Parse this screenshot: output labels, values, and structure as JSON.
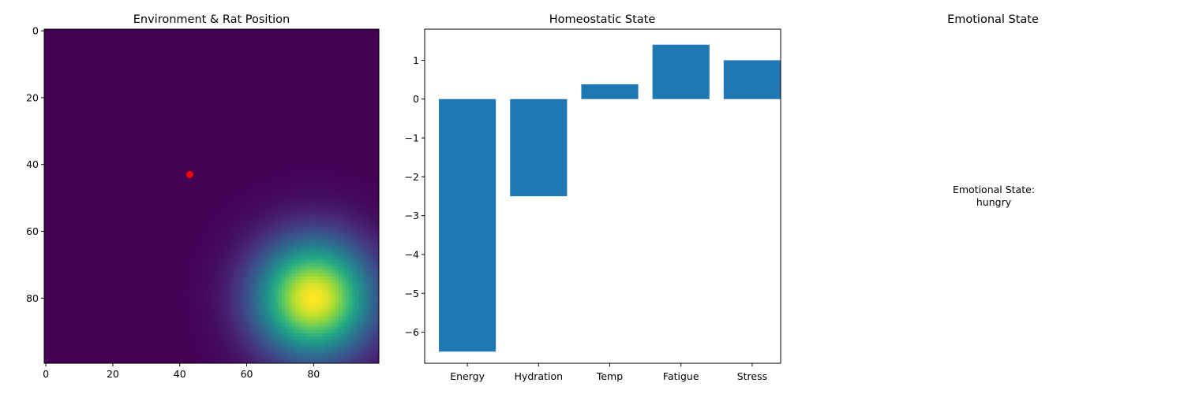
{
  "chart_data": [
    {
      "type": "heatmap",
      "title": "Environment & Rat Position",
      "grid_size": [
        100,
        100
      ],
      "colormap": "viridis",
      "xlim": [
        0,
        99
      ],
      "ylim": [
        99,
        0
      ],
      "xticks": [
        0,
        20,
        40,
        60,
        80
      ],
      "yticks": [
        0,
        20,
        40,
        60,
        80
      ],
      "field": {
        "type": "gaussian-peak",
        "center": [
          80,
          80
        ],
        "peak": 1.0,
        "sigma": 12
      },
      "marker": {
        "x": 43,
        "y": 43,
        "color": "#ff0000"
      }
    },
    {
      "type": "bar",
      "title": "Homeostatic State",
      "categories": [
        "Energy",
        "Hydration",
        "Temp",
        "Fatigue",
        "Stress"
      ],
      "values": [
        -6.5,
        -2.5,
        0.38,
        1.4,
        1.0
      ],
      "ylim": [
        -6.8,
        1.8
      ],
      "yticks": [
        1,
        0,
        -1,
        -2,
        -3,
        -4,
        -5,
        -6
      ],
      "bar_color": "#1f77b4"
    },
    {
      "type": "table",
      "title": "Emotional State",
      "text_lines": [
        "Emotional State:",
        "hungry"
      ]
    }
  ]
}
